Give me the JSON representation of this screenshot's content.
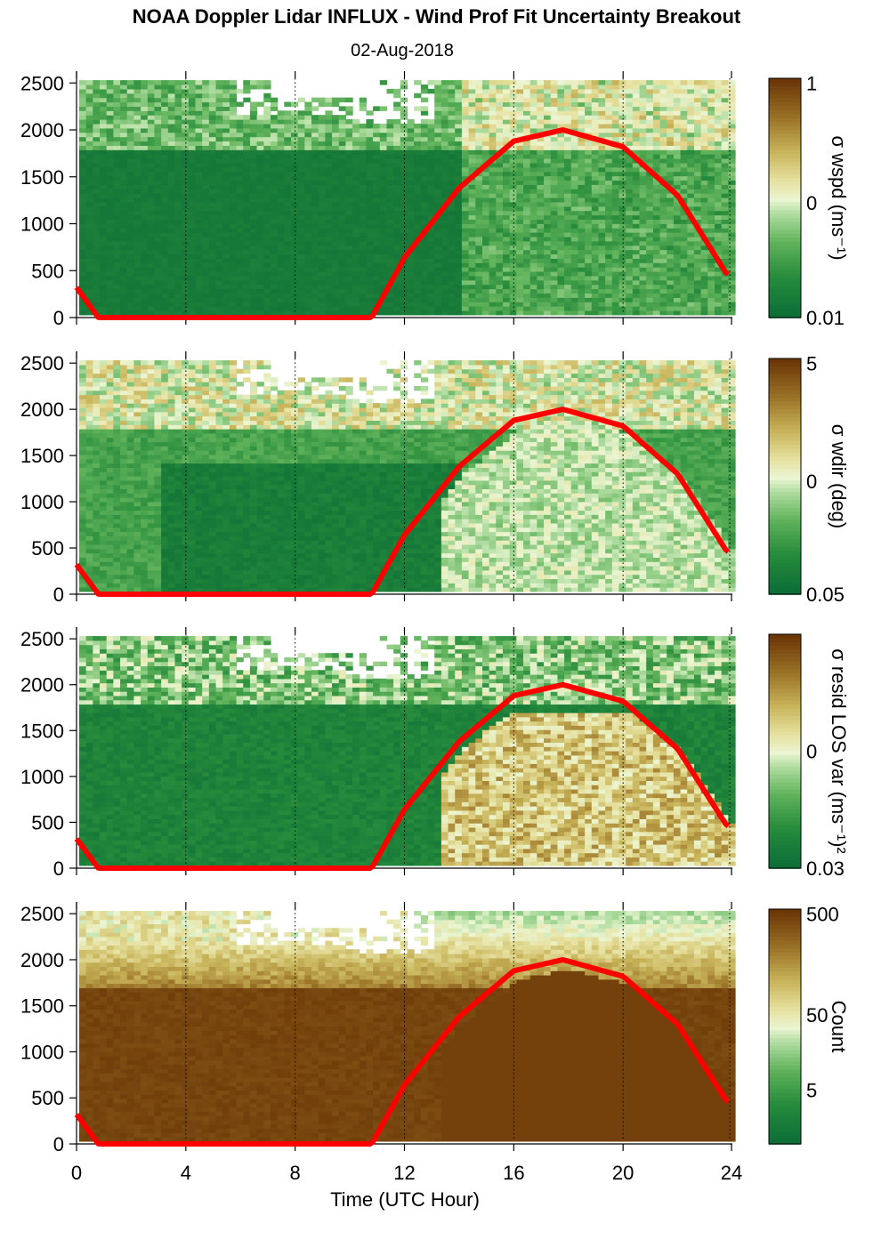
{
  "title": "NOAA Doppler Lidar INFLUX - Wind Prof Fit Uncertainty Breakout",
  "subtitle": "02-Aug-2018",
  "colors": {
    "sun_curve": "#ff0000",
    "low": "#0a6b36",
    "high": "#6b3606"
  },
  "chart_data": [
    {
      "type": "heatmap",
      "panel": 1,
      "title": "",
      "xlabel": "",
      "ylabel": "",
      "xlim": [
        0,
        24
      ],
      "ylim": [
        0,
        2550
      ],
      "xticks": [
        "0",
        "4",
        "8",
        "12",
        "16",
        "20",
        "24"
      ],
      "yticks": [
        "0",
        "500",
        "1000",
        "1500",
        "2000",
        "2500"
      ],
      "colorbar": {
        "label": "σ wspd (ms⁻¹)",
        "ticks": [
          "1",
          "0",
          "0.01"
        ],
        "scale": "log"
      },
      "series": [
        {
          "name": "",
          "x": [
            0,
            0.8,
            10.8,
            12,
            14,
            16,
            17.8,
            20,
            22,
            23.8
          ],
          "y": [
            320,
            0,
            0,
            640,
            1380,
            1880,
            2000,
            1820,
            1300,
            460
          ]
        }
      ]
    },
    {
      "type": "heatmap",
      "panel": 2,
      "title": "",
      "xlabel": "",
      "ylabel": "",
      "xlim": [
        0,
        24
      ],
      "ylim": [
        0,
        2550
      ],
      "xticks": [
        "0",
        "4",
        "8",
        "12",
        "16",
        "20",
        "24"
      ],
      "yticks": [
        "0",
        "500",
        "1000",
        "1500",
        "2000",
        "2500"
      ],
      "colorbar": {
        "label": "σ wdir (deg)",
        "ticks": [
          "5",
          "0",
          "0.05"
        ],
        "scale": "log"
      },
      "series": [
        {
          "name": "",
          "x": [
            0,
            0.8,
            10.8,
            12,
            14,
            16,
            17.8,
            20,
            22,
            23.8
          ],
          "y": [
            320,
            0,
            0,
            640,
            1380,
            1880,
            2000,
            1820,
            1300,
            460
          ]
        }
      ]
    },
    {
      "type": "heatmap",
      "panel": 3,
      "title": "",
      "xlabel": "",
      "ylabel": "",
      "xlim": [
        0,
        24
      ],
      "ylim": [
        0,
        2550
      ],
      "xticks": [
        "0",
        "4",
        "8",
        "12",
        "16",
        "20",
        "24"
      ],
      "yticks": [
        "0",
        "500",
        "1000",
        "1500",
        "2000",
        "2500"
      ],
      "colorbar": {
        "label": "σ resid LOS var (ms⁻¹)²",
        "ticks": [
          "0",
          "0.03"
        ],
        "scale": "log"
      },
      "series": [
        {
          "name": "",
          "x": [
            0,
            0.8,
            10.8,
            12,
            14,
            16,
            17.8,
            20,
            22,
            23.8
          ],
          "y": [
            320,
            0,
            0,
            640,
            1380,
            1880,
            2000,
            1820,
            1300,
            460
          ]
        }
      ]
    },
    {
      "type": "heatmap",
      "panel": 4,
      "title": "",
      "xlabel": "Time (UTC Hour)",
      "ylabel": "",
      "xlim": [
        0,
        24
      ],
      "ylim": [
        0,
        2550
      ],
      "xticks": [
        "0",
        "4",
        "8",
        "12",
        "16",
        "20",
        "24"
      ],
      "yticks": [
        "0",
        "500",
        "1000",
        "1500",
        "2000",
        "2500"
      ],
      "colorbar": {
        "label": "Count",
        "ticks": [
          "500",
          "50",
          "5"
        ],
        "scale": "log"
      },
      "series": [
        {
          "name": "",
          "x": [
            0,
            0.8,
            10.8,
            12,
            14,
            16,
            17.8,
            20,
            22,
            23.8
          ],
          "y": [
            320,
            0,
            0,
            640,
            1380,
            1880,
            2000,
            1820,
            1300,
            460
          ]
        }
      ]
    }
  ]
}
